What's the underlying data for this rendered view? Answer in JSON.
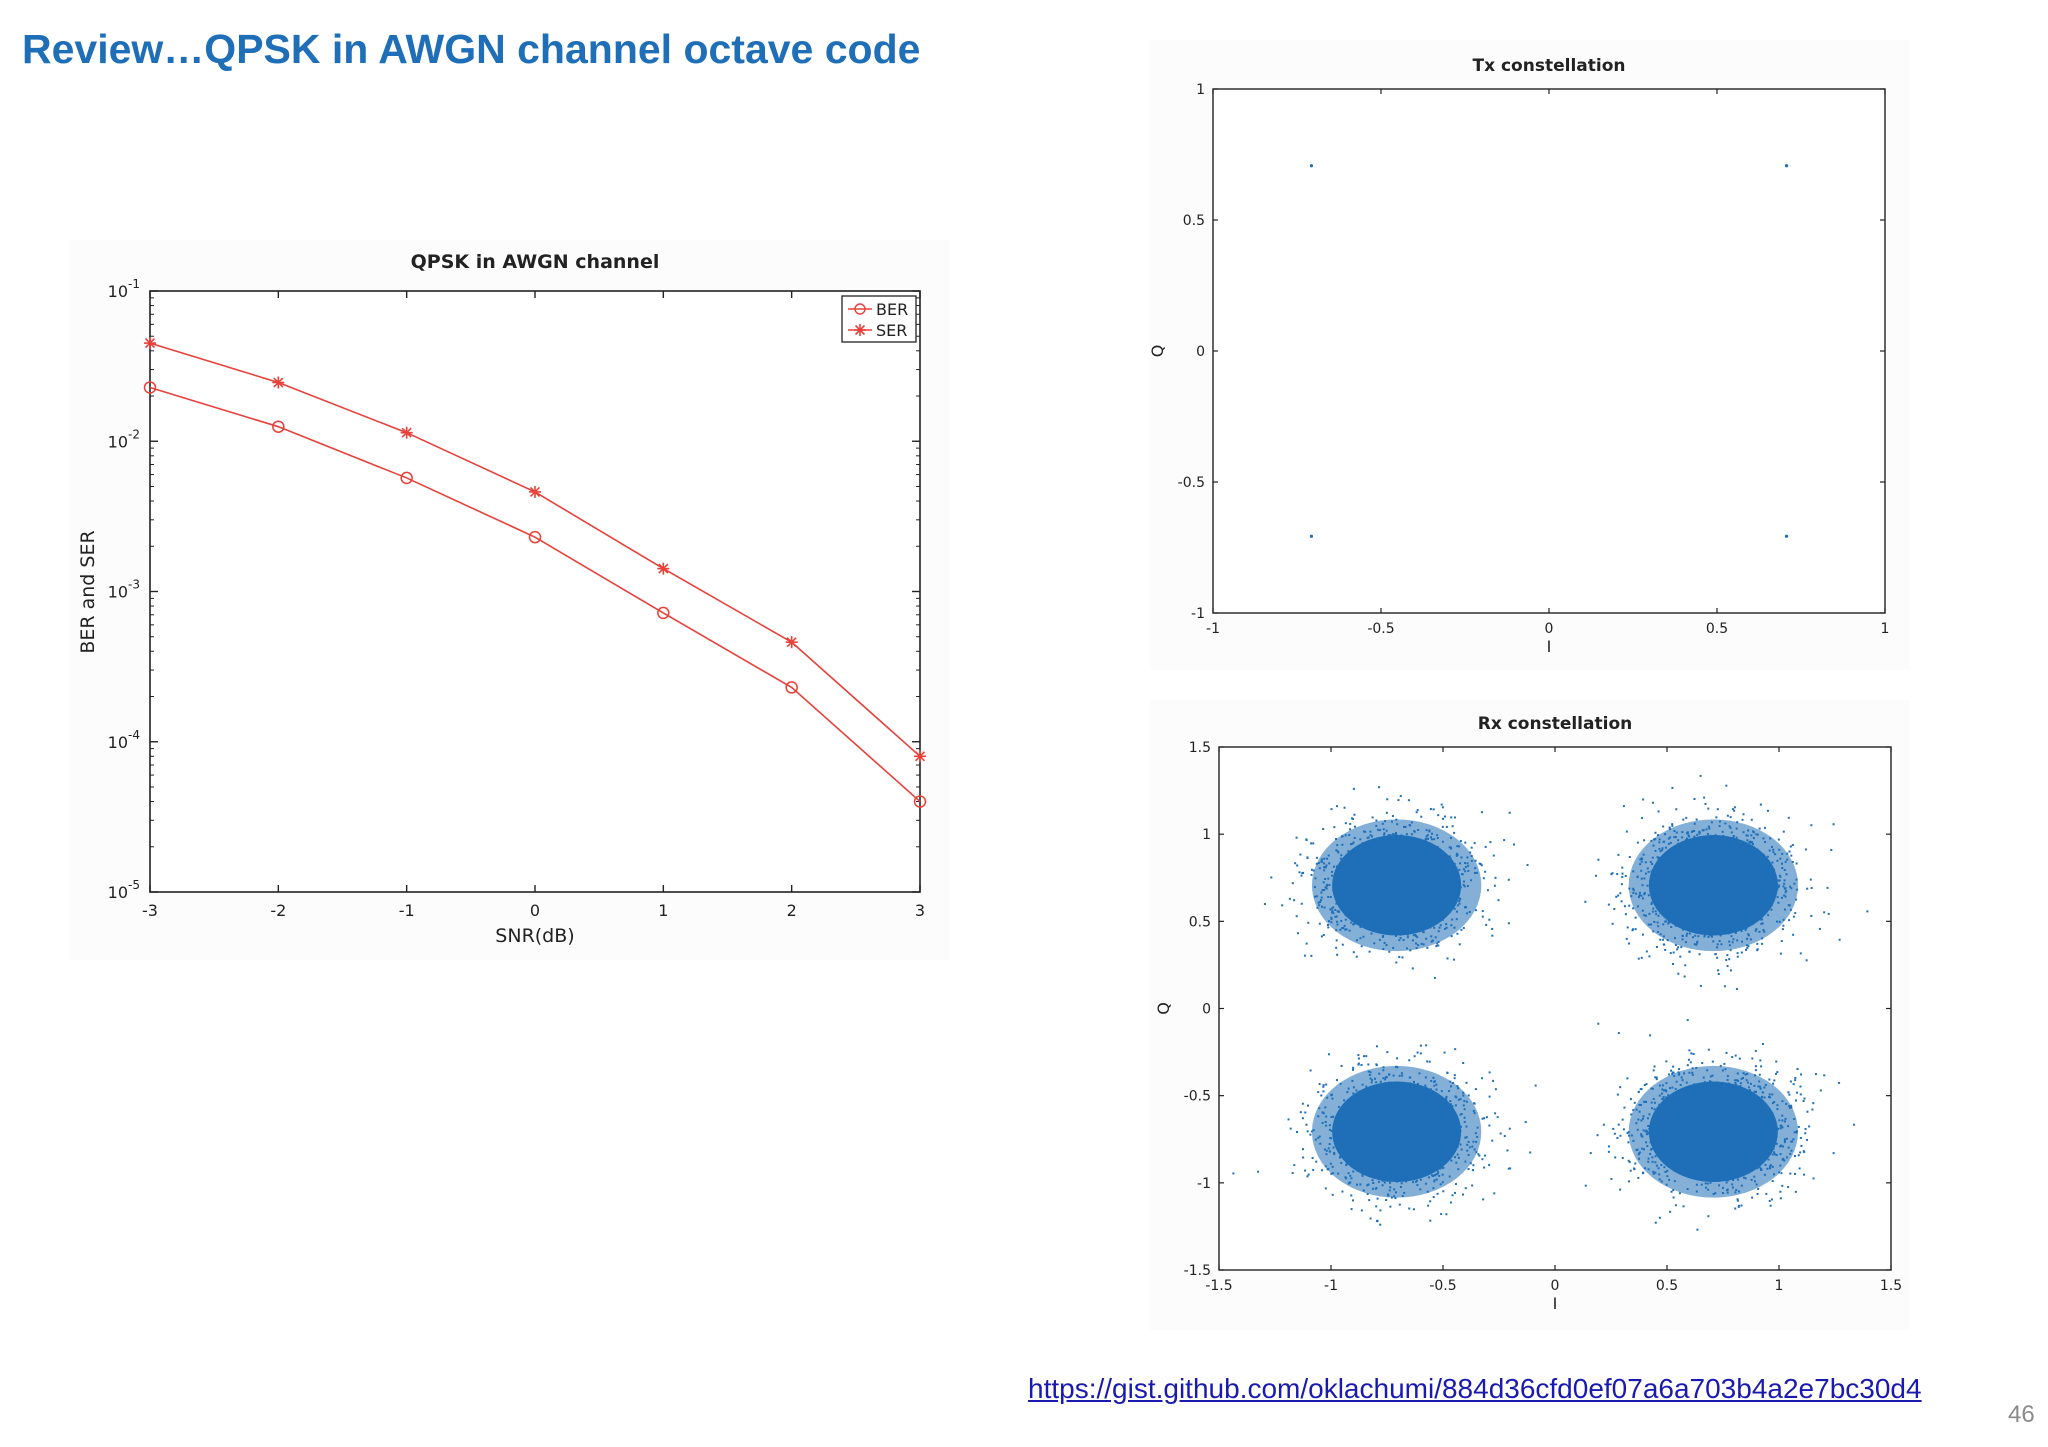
{
  "slide": {
    "title": "Review…QPSK in AWGN channel octave code",
    "link": "https://gist.github.com/oklachumi/884d36cfd0ef07a6a703b4a2e7bc30d4",
    "page_number": "46"
  },
  "chart_data": [
    {
      "id": "ber",
      "type": "line",
      "title": "QPSK in AWGN channel",
      "xlabel": "SNR(dB)",
      "ylabel": "BER and SER",
      "yscale": "log",
      "xlim": [
        -3,
        3
      ],
      "ylim": [
        1e-05,
        0.1
      ],
      "grid": false,
      "legend_position": "top-right",
      "x": [
        -3,
        -2,
        -1,
        0,
        1,
        2,
        3
      ],
      "xticks": [
        {
          "v": -3,
          "label": "-3"
        },
        {
          "v": -2,
          "label": "-2"
        },
        {
          "v": -1,
          "label": "-1"
        },
        {
          "v": 0,
          "label": "0"
        },
        {
          "v": 1,
          "label": "1"
        },
        {
          "v": 2,
          "label": "2"
        },
        {
          "v": 3,
          "label": "3"
        }
      ],
      "yticks": [
        {
          "exp": -1,
          "label_base": "10",
          "label_exp": "-1"
        },
        {
          "exp": -2,
          "label_base": "10",
          "label_exp": "-2"
        },
        {
          "exp": -3,
          "label_base": "10",
          "label_exp": "-3"
        },
        {
          "exp": -4,
          "label_base": "10",
          "label_exp": "-4"
        },
        {
          "exp": -5,
          "label_base": "10",
          "label_exp": "-5"
        }
      ],
      "series": [
        {
          "name": "BER",
          "marker": "circle",
          "color": "#e8403a",
          "values": [
            0.0228,
            0.0125,
            0.0057,
            0.0023,
            0.00072,
            0.00023,
            4e-05
          ]
        },
        {
          "name": "SER",
          "marker": "star",
          "color": "#e8403a",
          "values": [
            0.045,
            0.0246,
            0.0114,
            0.0046,
            0.00142,
            0.00046,
            8e-05
          ]
        }
      ]
    },
    {
      "id": "tx",
      "type": "scatter",
      "title": "Tx constellation",
      "xlabel": "I",
      "ylabel": "Q",
      "xlim": [
        -1,
        1
      ],
      "ylim": [
        -1,
        1
      ],
      "grid": false,
      "color": "#1f6fb8",
      "xticks": [
        {
          "v": -1,
          "label": "-1"
        },
        {
          "v": -0.5,
          "label": "-0.5"
        },
        {
          "v": 0,
          "label": "0"
        },
        {
          "v": 0.5,
          "label": "0.5"
        },
        {
          "v": 1,
          "label": "1"
        }
      ],
      "yticks": [
        {
          "v": 1,
          "label": "1"
        },
        {
          "v": 0.5,
          "label": "0.5"
        },
        {
          "v": 0,
          "label": "0"
        },
        {
          "v": -0.5,
          "label": "-0.5"
        },
        {
          "v": -1,
          "label": "-1"
        }
      ],
      "points": [
        [
          -0.707,
          0.707
        ],
        [
          0.707,
          0.707
        ],
        [
          -0.707,
          -0.707
        ],
        [
          0.707,
          -0.707
        ]
      ]
    },
    {
      "id": "rx",
      "type": "scatter",
      "title": "Rx constellation",
      "xlabel": "I",
      "ylabel": "Q",
      "xlim": [
        -1.5,
        1.5
      ],
      "ylim": [
        -1.5,
        1.5
      ],
      "grid": false,
      "color": "#1f6fb8",
      "xticks": [
        {
          "v": -1.5,
          "label": "-1.5"
        },
        {
          "v": -1,
          "label": "-1"
        },
        {
          "v": -0.5,
          "label": "-0.5"
        },
        {
          "v": 0,
          "label": "0"
        },
        {
          "v": 0.5,
          "label": "0.5"
        },
        {
          "v": 1,
          "label": "1"
        },
        {
          "v": 1.5,
          "label": "1.5"
        }
      ],
      "yticks": [
        {
          "v": 1.5,
          "label": "1.5"
        },
        {
          "v": 1,
          "label": "1"
        },
        {
          "v": 0.5,
          "label": "0.5"
        },
        {
          "v": 0,
          "label": "0"
        },
        {
          "v": -0.5,
          "label": "-0.5"
        },
        {
          "v": -1,
          "label": "-1"
        },
        {
          "v": -1.5,
          "label": "-1.5"
        }
      ],
      "cluster_centers": [
        [
          -0.707,
          0.707
        ],
        [
          0.707,
          0.707
        ],
        [
          -0.707,
          -0.707
        ],
        [
          0.707,
          -0.707
        ]
      ],
      "noise_std": 0.18
    }
  ]
}
